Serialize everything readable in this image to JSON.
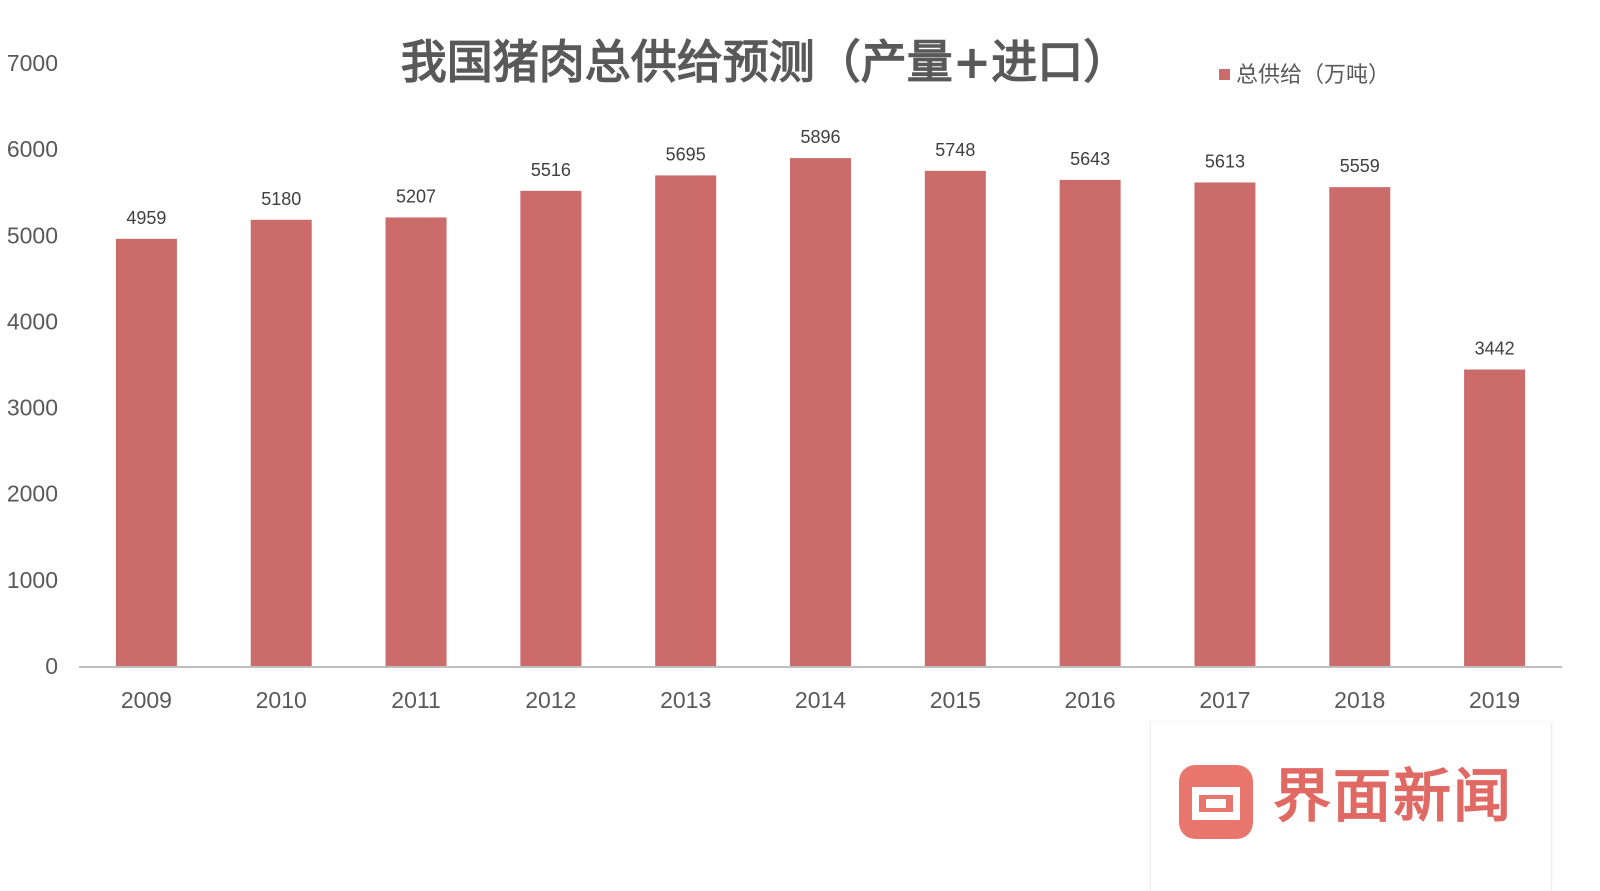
{
  "chart_data": {
    "type": "bar",
    "title": "我国猪肉总供给预测（产量+进口）",
    "categories": [
      "2009",
      "2010",
      "2011",
      "2012",
      "2013",
      "2014",
      "2015",
      "2016",
      "2017",
      "2018",
      "2019"
    ],
    "series": [
      {
        "name": "总供给（万吨）",
        "values": [
          4959,
          5180,
          5207,
          5516,
          5695,
          5896,
          5748,
          5643,
          5613,
          5559,
          3442
        ],
        "color": "#cb6b6a"
      }
    ],
    "xlabel": "",
    "ylabel": "",
    "ylim": [
      0,
      7000
    ],
    "yticks": [
      0,
      1000,
      2000,
      3000,
      4000,
      5000,
      6000,
      7000
    ],
    "grid": false,
    "legend": "top-right",
    "data_labels": true
  },
  "watermark": {
    "text": "界面新闻",
    "color": "#e06a63"
  }
}
